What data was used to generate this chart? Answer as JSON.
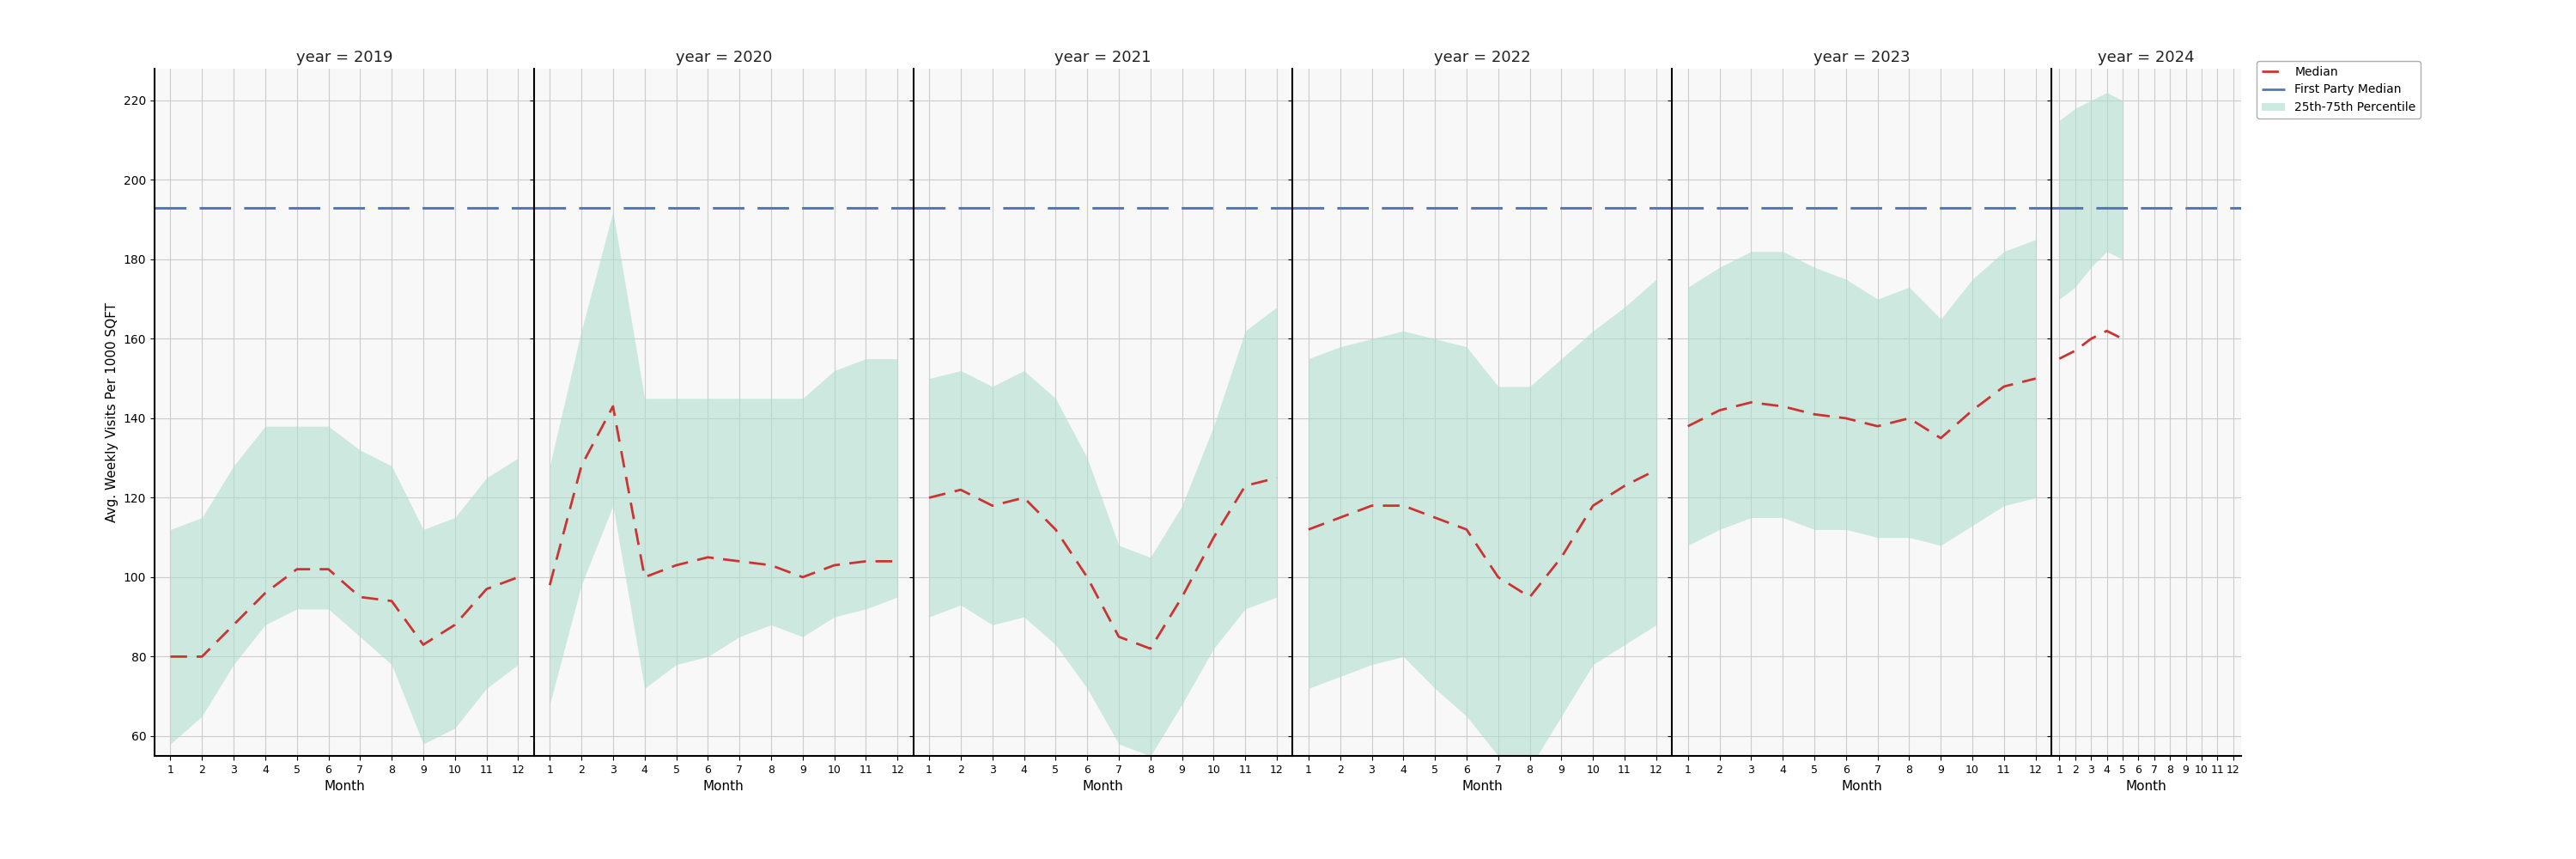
{
  "years": [
    2019,
    2020,
    2021,
    2022,
    2023,
    2024
  ],
  "months": [
    1,
    2,
    3,
    4,
    5,
    6,
    7,
    8,
    9,
    10,
    11,
    12
  ],
  "first_party_median": 193,
  "ylim": [
    55,
    228
  ],
  "yticks": [
    60,
    80,
    100,
    120,
    140,
    160,
    180,
    200,
    220
  ],
  "ylabel": "Avg. Weekly Visits Per 1000 SQFT",
  "xlabel": "Month",
  "median": {
    "2019": [
      80,
      80,
      88,
      96,
      102,
      102,
      95,
      94,
      83,
      88,
      97,
      100
    ],
    "2020": [
      98,
      128,
      143,
      100,
      103,
      105,
      104,
      103,
      100,
      103,
      104,
      104
    ],
    "2021": [
      120,
      122,
      118,
      120,
      112,
      100,
      85,
      82,
      95,
      110,
      123,
      125
    ],
    "2022": [
      112,
      115,
      118,
      118,
      115,
      112,
      100,
      95,
      105,
      118,
      123,
      127
    ],
    "2023": [
      138,
      142,
      144,
      143,
      141,
      140,
      138,
      140,
      135,
      142,
      148,
      150
    ],
    "2024": [
      155,
      157,
      160,
      162,
      160
    ]
  },
  "p25": {
    "2019": [
      58,
      65,
      78,
      88,
      92,
      92,
      85,
      78,
      58,
      62,
      72,
      78
    ],
    "2020": [
      68,
      98,
      118,
      72,
      78,
      80,
      85,
      88,
      85,
      90,
      92,
      95
    ],
    "2021": [
      90,
      93,
      88,
      90,
      83,
      72,
      58,
      55,
      68,
      82,
      92,
      95
    ],
    "2022": [
      72,
      75,
      78,
      80,
      72,
      65,
      55,
      52,
      65,
      78,
      83,
      88
    ],
    "2023": [
      108,
      112,
      115,
      115,
      112,
      112,
      110,
      110,
      108,
      113,
      118,
      120
    ],
    "2024": [
      170,
      173,
      178,
      182,
      180
    ]
  },
  "p75": {
    "2019": [
      112,
      115,
      128,
      138,
      138,
      138,
      132,
      128,
      112,
      115,
      125,
      130
    ],
    "2020": [
      128,
      162,
      192,
      145,
      145,
      145,
      145,
      145,
      145,
      152,
      155,
      155
    ],
    "2021": [
      150,
      152,
      148,
      152,
      145,
      130,
      108,
      105,
      118,
      138,
      162,
      168
    ],
    "2022": [
      155,
      158,
      160,
      162,
      160,
      158,
      148,
      148,
      155,
      162,
      168,
      175
    ],
    "2023": [
      173,
      178,
      182,
      182,
      178,
      175,
      170,
      173,
      165,
      175,
      182,
      185
    ],
    "2024": [
      215,
      218,
      220,
      222,
      220
    ]
  },
  "colors": {
    "median_line": "#cc3333",
    "fp_median_line": "#5577bb",
    "band_fill": "#aaddcc",
    "grid": "#cccccc",
    "background": "#f8f8f8",
    "spine": "#333333"
  },
  "legend": {
    "median_label": "Median",
    "fp_median_label": "First Party Median",
    "band_label": "25th-75th Percentile"
  },
  "panel_widths": [
    1.0,
    1.0,
    1.0,
    1.0,
    1.0,
    0.5
  ]
}
